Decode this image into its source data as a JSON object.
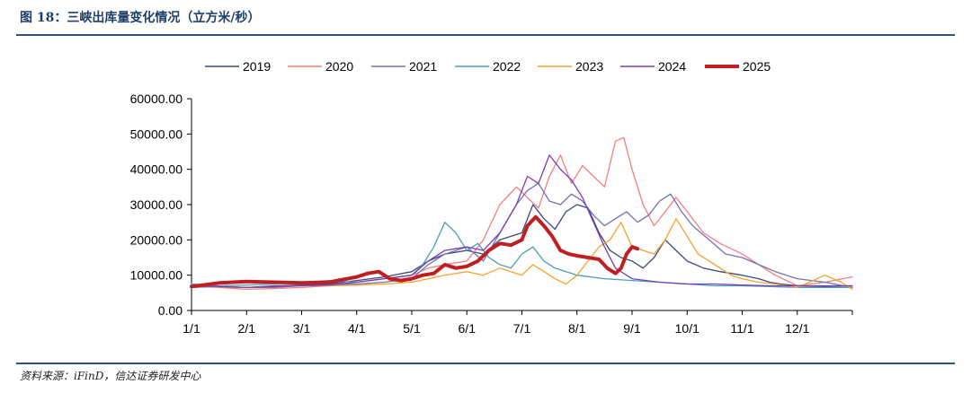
{
  "figure": {
    "title": "图 18：三峡出库量变化情况（立方米/秒）",
    "source": "资料来源：iFinD，信达证券研发中心"
  },
  "colors": {
    "2019": "#3d4a78",
    "2020": "#f07f80",
    "2021": "#7373ae",
    "2022": "#4aa0b5",
    "2023": "#f5a22f",
    "2024": "#7a3eb6",
    "2025": "#c01e20"
  },
  "chart_data": {
    "type": "line",
    "title": "",
    "xlabel": "",
    "ylabel": "",
    "ylim": [
      0,
      60000
    ],
    "yticks": [
      "0.00",
      "10000.00",
      "20000.00",
      "30000.00",
      "40000.00",
      "50000.00",
      "60000.00"
    ],
    "xticks": [
      "1/1",
      "2/1",
      "3/1",
      "4/1",
      "5/1",
      "6/1",
      "7/1",
      "8/1",
      "9/1",
      "10/1",
      "11/1",
      "12/1"
    ],
    "x_unit": "month (1 = Jan 1, 13 = Dec 31)",
    "legend": [
      "2019",
      "2020",
      "2021",
      "2022",
      "2023",
      "2024",
      "2025"
    ],
    "series": [
      {
        "name": "2019",
        "points": [
          [
            1,
            7000
          ],
          [
            1.5,
            6800
          ],
          [
            2,
            6500
          ],
          [
            2.5,
            7000
          ],
          [
            3,
            7200
          ],
          [
            3.5,
            7500
          ],
          [
            4,
            8500
          ],
          [
            4.5,
            9500
          ],
          [
            5,
            11000
          ],
          [
            5.3,
            14000
          ],
          [
            5.6,
            16000
          ],
          [
            6,
            17000
          ],
          [
            6.3,
            16000
          ],
          [
            6.6,
            20000
          ],
          [
            7,
            22000
          ],
          [
            7.2,
            30000
          ],
          [
            7.4,
            26000
          ],
          [
            7.6,
            23000
          ],
          [
            7.8,
            28000
          ],
          [
            8,
            30000
          ],
          [
            8.2,
            29000
          ],
          [
            8.4,
            22000
          ],
          [
            8.6,
            17000
          ],
          [
            8.8,
            15000
          ],
          [
            9,
            14000
          ],
          [
            9.2,
            12000
          ],
          [
            9.4,
            15000
          ],
          [
            9.6,
            20000
          ],
          [
            9.8,
            17000
          ],
          [
            10,
            14000
          ],
          [
            10.3,
            12000
          ],
          [
            10.6,
            11000
          ],
          [
            11,
            10000
          ],
          [
            11.3,
            9000
          ],
          [
            11.5,
            8000
          ],
          [
            11.7,
            7500
          ],
          [
            12,
            7000
          ],
          [
            12.5,
            6800
          ],
          [
            13,
            7000
          ]
        ]
      },
      {
        "name": "2020",
        "points": [
          [
            1,
            7000
          ],
          [
            1.5,
            6500
          ],
          [
            2,
            6000
          ],
          [
            2.5,
            6200
          ],
          [
            3,
            6500
          ],
          [
            3.5,
            7000
          ],
          [
            4,
            8000
          ],
          [
            4.5,
            9000
          ],
          [
            5,
            10000
          ],
          [
            5.3,
            12000
          ],
          [
            5.6,
            13000
          ],
          [
            6,
            14000
          ],
          [
            6.3,
            20000
          ],
          [
            6.6,
            30000
          ],
          [
            6.9,
            35000
          ],
          [
            7.1,
            32000
          ],
          [
            7.3,
            29000
          ],
          [
            7.5,
            38000
          ],
          [
            7.7,
            44000
          ],
          [
            7.9,
            36000
          ],
          [
            8.1,
            41000
          ],
          [
            8.3,
            38000
          ],
          [
            8.5,
            35000
          ],
          [
            8.7,
            48000
          ],
          [
            8.85,
            49000
          ],
          [
            9,
            40000
          ],
          [
            9.2,
            30000
          ],
          [
            9.4,
            24000
          ],
          [
            9.6,
            28000
          ],
          [
            9.8,
            32000
          ],
          [
            10,
            28000
          ],
          [
            10.3,
            22000
          ],
          [
            10.6,
            19000
          ],
          [
            11,
            16000
          ],
          [
            11.3,
            13000
          ],
          [
            11.6,
            10000
          ],
          [
            12,
            7000
          ],
          [
            12.5,
            8000
          ],
          [
            13,
            9500
          ]
        ]
      },
      {
        "name": "2021",
        "points": [
          [
            1,
            6500
          ],
          [
            1.5,
            6800
          ],
          [
            2,
            6500
          ],
          [
            2.5,
            6500
          ],
          [
            3,
            7000
          ],
          [
            3.5,
            7200
          ],
          [
            4,
            7500
          ],
          [
            4.5,
            8000
          ],
          [
            5,
            9000
          ],
          [
            5.3,
            13000
          ],
          [
            5.6,
            16000
          ],
          [
            6,
            18000
          ],
          [
            6.3,
            14000
          ],
          [
            6.6,
            22000
          ],
          [
            6.9,
            30000
          ],
          [
            7.1,
            34000
          ],
          [
            7.3,
            36000
          ],
          [
            7.5,
            31000
          ],
          [
            7.7,
            30000
          ],
          [
            7.9,
            33000
          ],
          [
            8.1,
            31000
          ],
          [
            8.3,
            27000
          ],
          [
            8.5,
            24000
          ],
          [
            8.7,
            26000
          ],
          [
            8.9,
            28000
          ],
          [
            9.1,
            25000
          ],
          [
            9.3,
            27000
          ],
          [
            9.5,
            31000
          ],
          [
            9.7,
            33000
          ],
          [
            9.9,
            28000
          ],
          [
            10.1,
            24000
          ],
          [
            10.4,
            20000
          ],
          [
            10.7,
            16000
          ],
          [
            11,
            15000
          ],
          [
            11.3,
            13000
          ],
          [
            11.6,
            11000
          ],
          [
            12,
            9000
          ],
          [
            12.5,
            8000
          ],
          [
            13,
            6500
          ]
        ]
      },
      {
        "name": "2022",
        "points": [
          [
            1,
            7500
          ],
          [
            1.5,
            7000
          ],
          [
            2,
            7200
          ],
          [
            2.5,
            7500
          ],
          [
            3,
            8000
          ],
          [
            3.5,
            8500
          ],
          [
            4,
            8000
          ],
          [
            4.5,
            9000
          ],
          [
            5,
            10000
          ],
          [
            5.2,
            13000
          ],
          [
            5.4,
            18000
          ],
          [
            5.6,
            25000
          ],
          [
            5.8,
            22000
          ],
          [
            6,
            17000
          ],
          [
            6.2,
            19000
          ],
          [
            6.4,
            15000
          ],
          [
            6.6,
            13000
          ],
          [
            6.8,
            12000
          ],
          [
            7,
            16000
          ],
          [
            7.2,
            18000
          ],
          [
            7.4,
            14000
          ],
          [
            7.6,
            12000
          ],
          [
            7.8,
            11000
          ],
          [
            8,
            10000
          ],
          [
            8.5,
            9000
          ],
          [
            9,
            8500
          ],
          [
            9.5,
            8000
          ],
          [
            10,
            7500
          ],
          [
            10.5,
            7000
          ],
          [
            11,
            7000
          ],
          [
            11.5,
            6800
          ],
          [
            12,
            6500
          ],
          [
            12.5,
            6500
          ],
          [
            13,
            6500
          ]
        ]
      },
      {
        "name": "2023",
        "points": [
          [
            1,
            7000
          ],
          [
            1.5,
            6800
          ],
          [
            2,
            6500
          ],
          [
            2.5,
            6800
          ],
          [
            3,
            7000
          ],
          [
            3.5,
            7000
          ],
          [
            4,
            7200
          ],
          [
            4.5,
            7500
          ],
          [
            5,
            8000
          ],
          [
            5.3,
            9000
          ],
          [
            5.6,
            10000
          ],
          [
            6,
            11000
          ],
          [
            6.3,
            10000
          ],
          [
            6.6,
            12000
          ],
          [
            7,
            10000
          ],
          [
            7.2,
            13000
          ],
          [
            7.4,
            11000
          ],
          [
            7.6,
            9000
          ],
          [
            7.8,
            7500
          ],
          [
            8,
            10000
          ],
          [
            8.2,
            14000
          ],
          [
            8.4,
            18000
          ],
          [
            8.6,
            20000
          ],
          [
            8.8,
            25000
          ],
          [
            9,
            18000
          ],
          [
            9.2,
            17000
          ],
          [
            9.4,
            16000
          ],
          [
            9.6,
            20000
          ],
          [
            9.8,
            26000
          ],
          [
            10,
            21000
          ],
          [
            10.2,
            16000
          ],
          [
            10.4,
            14000
          ],
          [
            10.6,
            12000
          ],
          [
            10.8,
            10000
          ],
          [
            11,
            9000
          ],
          [
            11.3,
            8000
          ],
          [
            11.6,
            7500
          ],
          [
            12,
            6500
          ],
          [
            12.5,
            10000
          ],
          [
            12.8,
            8000
          ],
          [
            13,
            6000
          ]
        ]
      },
      {
        "name": "2024",
        "points": [
          [
            1,
            7000
          ],
          [
            1.5,
            6800
          ],
          [
            2,
            6500
          ],
          [
            2.5,
            6800
          ],
          [
            3,
            7000
          ],
          [
            3.5,
            7200
          ],
          [
            4,
            8000
          ],
          [
            4.5,
            9000
          ],
          [
            5,
            10000
          ],
          [
            5.3,
            14000
          ],
          [
            5.6,
            17000
          ],
          [
            6,
            18000
          ],
          [
            6.3,
            17000
          ],
          [
            6.6,
            22000
          ],
          [
            6.9,
            30000
          ],
          [
            7.1,
            38000
          ],
          [
            7.3,
            36000
          ],
          [
            7.5,
            44000
          ],
          [
            7.7,
            40000
          ],
          [
            7.9,
            37000
          ],
          [
            8.1,
            32000
          ],
          [
            8.3,
            25000
          ],
          [
            8.5,
            18000
          ],
          [
            8.7,
            12000
          ],
          [
            9,
            9000
          ],
          [
            9.5,
            8000
          ],
          [
            10,
            7500
          ],
          [
            10.5,
            7500
          ],
          [
            11,
            7200
          ],
          [
            11.5,
            7000
          ],
          [
            12,
            7000
          ],
          [
            12.5,
            7000
          ],
          [
            13,
            7000
          ]
        ]
      },
      {
        "name": "2025",
        "points": [
          [
            1,
            6800
          ],
          [
            1.5,
            7800
          ],
          [
            2,
            8200
          ],
          [
            2.5,
            8000
          ],
          [
            3,
            7800
          ],
          [
            3.5,
            8000
          ],
          [
            4,
            9500
          ],
          [
            4.2,
            10500
          ],
          [
            4.4,
            11000
          ],
          [
            4.6,
            9000
          ],
          [
            4.8,
            8500
          ],
          [
            5,
            9000
          ],
          [
            5.2,
            10000
          ],
          [
            5.4,
            10500
          ],
          [
            5.6,
            13000
          ],
          [
            5.8,
            12000
          ],
          [
            6,
            12500
          ],
          [
            6.2,
            14000
          ],
          [
            6.4,
            17000
          ],
          [
            6.6,
            19000
          ],
          [
            6.8,
            18500
          ],
          [
            7,
            20000
          ],
          [
            7.1,
            24000
          ],
          [
            7.25,
            26500
          ],
          [
            7.4,
            24000
          ],
          [
            7.55,
            21000
          ],
          [
            7.7,
            17000
          ],
          [
            7.85,
            16000
          ],
          [
            8,
            15500
          ],
          [
            8.2,
            15000
          ],
          [
            8.4,
            14500
          ],
          [
            8.55,
            12000
          ],
          [
            8.7,
            10500
          ],
          [
            8.8,
            12000
          ],
          [
            8.9,
            16000
          ],
          [
            9,
            18000
          ],
          [
            9.1,
            17500
          ]
        ]
      }
    ]
  }
}
